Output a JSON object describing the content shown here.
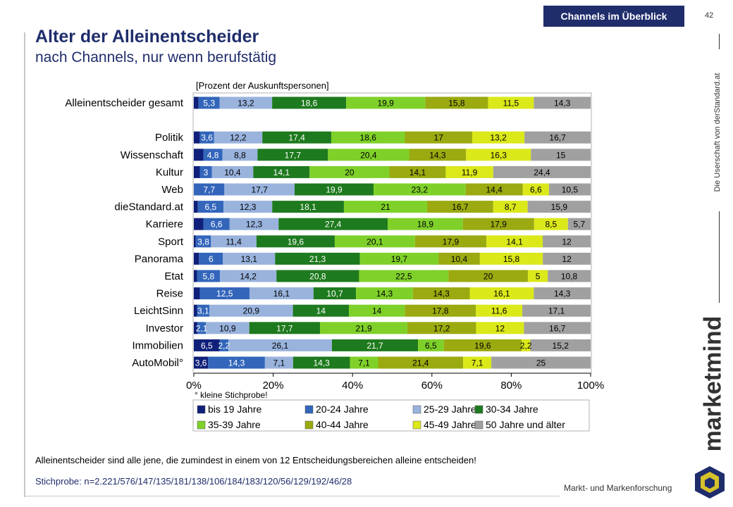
{
  "header": {
    "tag": "Channels im Überblick",
    "page_number": "42",
    "title": "Alter der Alleinentscheider",
    "subtitle": "nach Channels, nur wenn berufstätig"
  },
  "side": {
    "text": "Die Userschaft von derStandard.at",
    "brand": "marketmind",
    "brand_sub": "Markt- und Markenforschung"
  },
  "footnote": "Alleinentscheider sind alle jene, die zumindest in einem von 12 Entscheidungsbereichen alleine entscheiden!",
  "sample": "Stichprobe:  n=2.221/576/147/135/181/138/106/184/183/120/56/129/192/46/28",
  "chart_data": {
    "type": "bar",
    "orientation": "horizontal",
    "stacked": true,
    "unit_label": "[Prozent der Auskunftspersonen]",
    "note": "° kleine Stichprobe!",
    "xlim": [
      0,
      100
    ],
    "x_ticks": [
      "0%",
      "20%",
      "40%",
      "60%",
      "80%",
      "100%"
    ],
    "categories": [
      "Alleinentscheider gesamt",
      "",
      "Politik",
      "Wissenschaft",
      "Kultur",
      "Web",
      "dieStandard.at",
      "Karriere",
      "Sport",
      "Panorama",
      "Etat",
      "Reise",
      "LeichtSinn",
      "Investor",
      "Immobilien",
      "AutoMobil°"
    ],
    "series": [
      {
        "name": "bis 19 Jahre",
        "color": "#10207a",
        "labels": [
          "",
          "",
          "",
          "",
          "",
          "",
          "",
          "",
          "",
          "",
          "",
          "",
          "",
          "",
          "6,5",
          "3,6"
        ],
        "values": [
          1.2,
          null,
          1.5,
          2.4,
          1.5,
          0,
          1.0,
          2.4,
          0.5,
          1.3,
          0.8,
          1.5,
          0.8,
          0.9,
          6.5,
          3.6
        ]
      },
      {
        "name": "20-24 Jahre",
        "color": "#3366bb",
        "labels": [
          "5,3",
          "",
          "3,6",
          "4,8",
          "3",
          "7,7",
          "6,5",
          "6,6",
          "3,8",
          "6",
          "5,8",
          "12,5",
          "3,1",
          "2,1",
          "2,2",
          "14,3"
        ],
        "values": [
          5.3,
          null,
          3.6,
          4.8,
          3.0,
          7.7,
          6.5,
          6.6,
          3.8,
          6.0,
          5.8,
          12.5,
          3.1,
          2.1,
          2.2,
          14.3
        ]
      },
      {
        "name": "25-29 Jahre",
        "color": "#99b3dd",
        "labels": [
          "13,2",
          "",
          "12,2",
          "8,8",
          "10,4",
          "17,7",
          "12,3",
          "12,3",
          "11,4",
          "13,1",
          "14,2",
          "16,1",
          "20,9",
          "10,9",
          "26,1",
          "7,1"
        ],
        "values": [
          13.2,
          null,
          12.2,
          8.8,
          10.4,
          17.7,
          12.3,
          12.3,
          11.4,
          13.1,
          14.2,
          16.1,
          20.9,
          10.9,
          26.1,
          7.1
        ]
      },
      {
        "name": "30-34 Jahre",
        "color": "#1e7a1e",
        "labels": [
          "18,6",
          "",
          "17,4",
          "17,7",
          "14,1",
          "19,9",
          "18,1",
          "27,4",
          "19,6",
          "21,3",
          "20,8",
          "10,7",
          "14",
          "17,7",
          "21,7",
          "14,3"
        ],
        "values": [
          18.6,
          null,
          17.4,
          17.7,
          14.1,
          19.9,
          18.1,
          27.4,
          19.6,
          21.3,
          20.8,
          10.7,
          14.0,
          17.7,
          21.7,
          14.3
        ]
      },
      {
        "name": "35-39 Jahre",
        "color": "#7fd12a",
        "labels": [
          "19,9",
          "",
          "18,6",
          "20,4",
          "20",
          "23,2",
          "21",
          "18,9",
          "20,1",
          "19,7",
          "22,5",
          "14,3",
          "14",
          "21,9",
          "6,5",
          "7,1"
        ],
        "values": [
          19.9,
          null,
          18.6,
          20.4,
          20.0,
          23.2,
          21.0,
          18.9,
          20.1,
          19.7,
          22.5,
          14.3,
          14.0,
          21.9,
          6.5,
          7.1
        ]
      },
      {
        "name": "40-44 Jahre",
        "color": "#9aaa10",
        "labels": [
          "15,8",
          "",
          "17",
          "14,3",
          "14,1",
          "14,4",
          "16,7",
          "17,9",
          "17,9",
          "10,4",
          "20",
          "14,3",
          "17,8",
          "17,2",
          "19,6",
          "21,4"
        ],
        "values": [
          15.8,
          null,
          17.0,
          14.3,
          14.1,
          14.4,
          16.7,
          17.9,
          17.9,
          10.4,
          20.0,
          14.3,
          17.8,
          17.2,
          19.6,
          21.4
        ]
      },
      {
        "name": "45-49 Jahre",
        "color": "#dbe81a",
        "labels": [
          "11,5",
          "",
          "13,2",
          "16,3",
          "11,9",
          "6,6",
          "8,7",
          "8,5",
          "14,1",
          "15,8",
          "5",
          "16,1",
          "11,6",
          "12",
          "2,2",
          "7,1"
        ],
        "values": [
          11.5,
          null,
          13.2,
          16.3,
          11.9,
          6.6,
          8.7,
          8.5,
          14.1,
          15.8,
          5.0,
          16.1,
          11.6,
          12.0,
          2.2,
          7.1
        ]
      },
      {
        "name": "50 Jahre und älter",
        "color": "#a0a0a0",
        "labels": [
          "14,3",
          "",
          "16,7",
          "15",
          "24,4",
          "10,5",
          "15,9",
          "5,7",
          "12",
          "12",
          "10,8",
          "14,3",
          "17,1",
          "16,7",
          "15,2",
          "25"
        ],
        "values": [
          14.3,
          null,
          16.7,
          15.0,
          24.4,
          10.5,
          15.9,
          5.7,
          12.0,
          12.0,
          10.8,
          14.3,
          17.1,
          16.7,
          15.2,
          25.0
        ]
      }
    ],
    "legend_position": "bottom",
    "grid": false
  }
}
